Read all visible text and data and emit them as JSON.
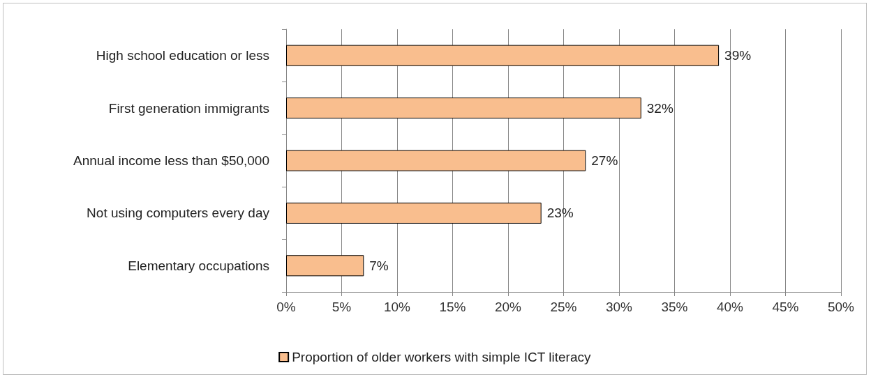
{
  "chart_data": {
    "type": "bar",
    "orientation": "horizontal",
    "categories": [
      "High school education or less",
      "First generation immigrants",
      "Annual income less than $50,000",
      "Not using computers every day",
      "Elementary occupations"
    ],
    "series": [
      {
        "name": "Proportion of older workers with simple ICT literacy",
        "color": "#f9be8e",
        "values": [
          39,
          32,
          27,
          23,
          7
        ],
        "value_labels": [
          "39%",
          "32%",
          "27%",
          "23%",
          "7%"
        ]
      }
    ],
    "xlim": [
      0,
      50
    ],
    "xticks": [
      {
        "value": 0,
        "label": "0%"
      },
      {
        "value": 5,
        "label": "5%"
      },
      {
        "value": 10,
        "label": "10%"
      },
      {
        "value": 15,
        "label": "15%"
      },
      {
        "value": 20,
        "label": "20%"
      },
      {
        "value": 25,
        "label": "25%"
      },
      {
        "value": 30,
        "label": "30%"
      },
      {
        "value": 35,
        "label": "35%"
      },
      {
        "value": 40,
        "label": "40%"
      },
      {
        "value": 45,
        "label": "45%"
      },
      {
        "value": 50,
        "label": "50%"
      }
    ],
    "grid": "x",
    "legend": "bottom"
  }
}
